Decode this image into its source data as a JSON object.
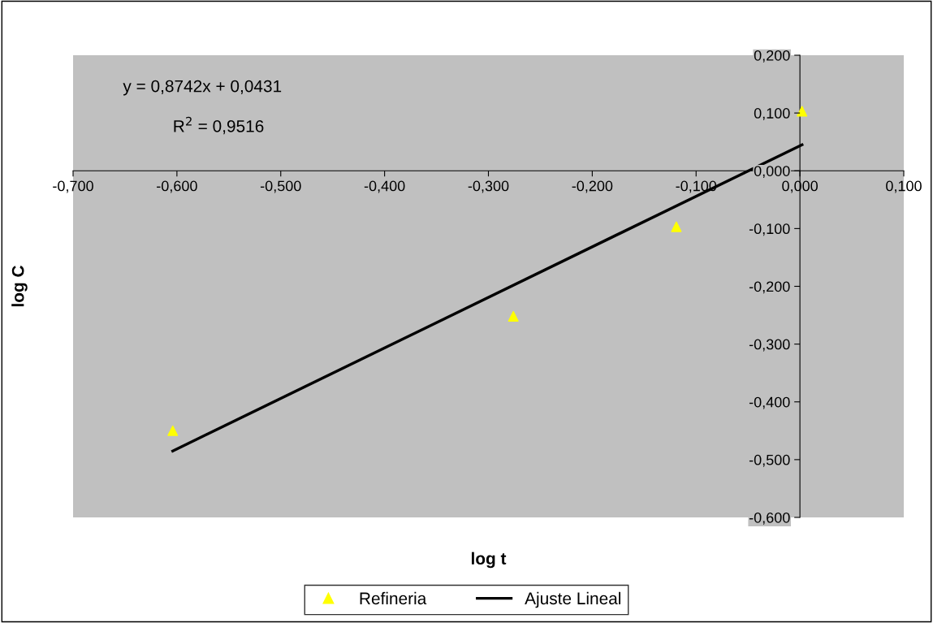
{
  "chart_data": {
    "type": "scatter",
    "xlabel": "log t",
    "ylabel": "log C",
    "annotations": [
      "y = 0,8742x + 0,0431",
      "R$^{2}$ = 0,9516"
    ],
    "series": [
      {
        "name": "Refineria",
        "color": "#ffff00",
        "marker": "triangle",
        "x": [
          -0.604,
          -0.276,
          -0.119,
          0.002
        ],
        "values": [
          -0.45,
          -0.252,
          -0.097,
          0.103
        ]
      },
      {
        "name": "Ajuste Lineal",
        "type": "line",
        "color": "#000000",
        "marker": "none",
        "line_style": "solid",
        "x": [
          -0.604,
          0.002
        ],
        "values": [
          -0.485,
          0.045
        ]
      }
    ],
    "xlim": [
      -0.7,
      0.1
    ],
    "ylim": [
      -0.6,
      0.2
    ],
    "xticks": [
      {
        "value": -0.7,
        "label": "-0,700"
      },
      {
        "value": -0.6,
        "label": "-0,600"
      },
      {
        "value": -0.5,
        "label": "-0,500"
      },
      {
        "value": -0.4,
        "label": "-0,400"
      },
      {
        "value": -0.3,
        "label": "-0,300"
      },
      {
        "value": -0.2,
        "label": "-0,200"
      },
      {
        "value": -0.1,
        "label": "-0,100"
      },
      {
        "value": 0,
        "label": "0,000"
      },
      {
        "value": 0.1,
        "label": "0,100"
      }
    ],
    "yticks": [
      {
        "value": -0.6,
        "label": "-0,600"
      },
      {
        "value": -0.5,
        "label": "-0,500"
      },
      {
        "value": -0.4,
        "label": "-0,400"
      },
      {
        "value": -0.3,
        "label": "-0,300"
      },
      {
        "value": -0.2,
        "label": "-0,200"
      },
      {
        "value": -0.1,
        "label": "-0,100"
      },
      {
        "value": 0,
        "label": "0,000"
      },
      {
        "value": 0.1,
        "label": "0,100"
      },
      {
        "value": 0.2,
        "label": "0,200"
      }
    ],
    "grid": false,
    "legend": "bottom"
  }
}
